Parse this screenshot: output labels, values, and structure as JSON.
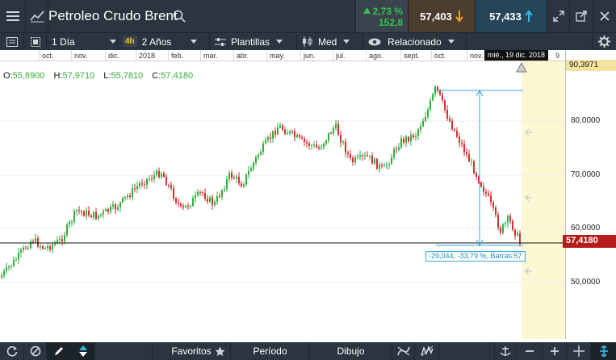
{
  "header": {
    "title": "Petroleo Crudo Brent",
    "change_pct": "2,73 %",
    "change_pts": "152,8",
    "sell_price": "57,403",
    "buy_price": "57,433"
  },
  "toolbar": {
    "interval": "1 Día",
    "tag": "4h",
    "range": "2 Años",
    "templates": "Plantillas",
    "price_type": "Med",
    "related": "Relacionado"
  },
  "axis": {
    "months": [
      "oct.",
      "nov.",
      "dic.",
      "2018",
      "feb.",
      "mar.",
      "abr.",
      "may.",
      "jun.",
      "jul.",
      "ago.",
      "sept.",
      "oct.",
      "nov."
    ],
    "date_tooltip": "mié., 19 dic. 2018",
    "trailing_label": "9"
  },
  "ohlc": {
    "o_label": "O:",
    "o": "55,8900",
    "h_label": "H:",
    "h": "57,9710",
    "l_label": "L:",
    "l": "55,7810",
    "c_label": "C:",
    "c": "57,4180"
  },
  "price_axis": {
    "labels": [
      "80,0000",
      "70,0000",
      "60,0000",
      "50,0000"
    ],
    "top_marker": "90,3971",
    "current": "57,4180"
  },
  "measure": {
    "label": "-29,044, -33,79 %, Barras:57"
  },
  "bottom": {
    "favorites": "Favoritos",
    "period": "Período",
    "drawing": "Dibujo"
  },
  "colors": {
    "up": "#2fae3c",
    "down": "#d32f2f",
    "accent": "#35a8d8",
    "current_price": "#b71c1c"
  }
}
